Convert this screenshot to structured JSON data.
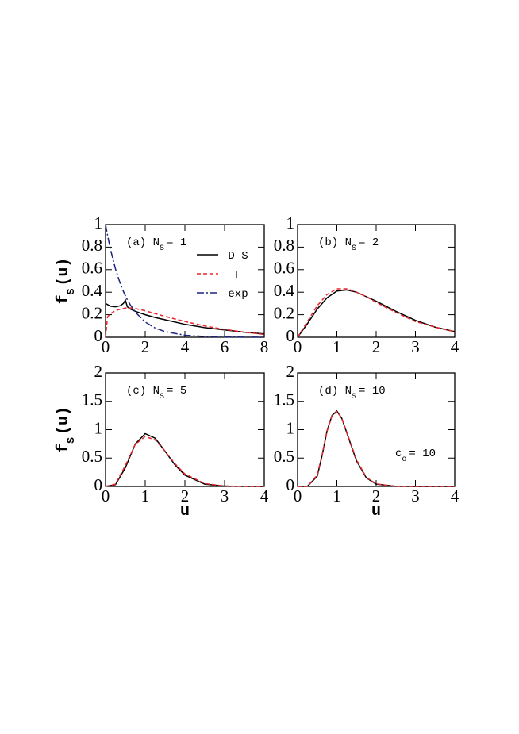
{
  "chart_data": [
    {
      "type": "line",
      "annotation": {
        "text": "(a) N",
        "sub": "S",
        "tail": "= 1"
      },
      "ylabel": {
        "text": "f",
        "sub": "S",
        "tail": "(u)"
      },
      "x": [
        0,
        0.1,
        0.25,
        0.5,
        0.75,
        0.9,
        1,
        1.1,
        1.25,
        1.5,
        2,
        2.5,
        3,
        4,
        5,
        6,
        7,
        8
      ],
      "series": [
        {
          "name": "D S",
          "color": "#000000",
          "dash": "solid",
          "values": [
            0.3,
            0.29,
            0.275,
            0.27,
            0.28,
            0.3,
            0.33,
            0.27,
            0.25,
            0.23,
            0.2,
            0.175,
            0.155,
            0.115,
            0.085,
            0.065,
            0.045,
            0.03
          ]
        },
        {
          "name": "Γ",
          "color": "#e8262b",
          "dash": "dashed",
          "values": [
            0,
            0.18,
            0.21,
            0.235,
            0.25,
            0.255,
            0.26,
            0.26,
            0.26,
            0.255,
            0.235,
            0.21,
            0.185,
            0.14,
            0.1,
            0.07,
            0.045,
            0.025
          ]
        },
        {
          "name": "exp",
          "color": "#1a237e",
          "dash": "dashdot",
          "values": [
            1,
            0.905,
            0.779,
            0.607,
            0.472,
            0.407,
            0.368,
            0.333,
            0.287,
            0.223,
            0.135,
            0.082,
            0.05,
            0.018,
            0.007,
            0.002,
            0.001,
            0.0003
          ]
        }
      ],
      "legend": "upper right",
      "xlim": [
        0,
        8
      ],
      "xticks": [
        0,
        2,
        4,
        6,
        8
      ],
      "ylim": [
        0,
        1
      ],
      "yticks": [
        0,
        0.2,
        0.4,
        0.6,
        0.8,
        1
      ]
    },
    {
      "type": "line",
      "annotation": {
        "text": "(b) N",
        "sub": "S",
        "tail": "= 2"
      },
      "x": [
        0,
        0.25,
        0.5,
        0.75,
        1,
        1.25,
        1.5,
        1.75,
        2,
        2.5,
        3,
        3.5,
        4
      ],
      "series": [
        {
          "color": "#000000",
          "dash": "solid",
          "values": [
            0,
            0.12,
            0.25,
            0.35,
            0.41,
            0.42,
            0.4,
            0.36,
            0.32,
            0.23,
            0.15,
            0.09,
            0.05
          ]
        },
        {
          "color": "#e8262b",
          "dash": "dashed",
          "values": [
            0,
            0.14,
            0.28,
            0.38,
            0.43,
            0.43,
            0.4,
            0.36,
            0.31,
            0.22,
            0.14,
            0.09,
            0.05
          ]
        }
      ],
      "xlim": [
        0,
        4
      ],
      "xticks": [
        0,
        1,
        2,
        3,
        4
      ],
      "ylim": [
        0,
        1
      ],
      "yticks": [
        0,
        0.2,
        0.4,
        0.6,
        0.8,
        1
      ]
    },
    {
      "type": "line",
      "annotation": {
        "text": "(c) N",
        "sub": "S",
        "tail": "= 5"
      },
      "ylabel": {
        "text": "f",
        "sub": "S",
        "tail": "(u)"
      },
      "xlabel": "u",
      "x": [
        0,
        0.25,
        0.5,
        0.75,
        1,
        1.25,
        1.5,
        1.75,
        2,
        2.5,
        3,
        3.5,
        4
      ],
      "series": [
        {
          "color": "#000000",
          "dash": "solid",
          "values": [
            0,
            0.03,
            0.33,
            0.75,
            0.93,
            0.85,
            0.62,
            0.38,
            0.2,
            0.04,
            0.005,
            0.001,
            0
          ]
        },
        {
          "color": "#e8262b",
          "dash": "dashed",
          "values": [
            0,
            0.04,
            0.37,
            0.74,
            0.88,
            0.82,
            0.62,
            0.4,
            0.22,
            0.05,
            0.008,
            0.001,
            0
          ]
        }
      ],
      "xlim": [
        0,
        4
      ],
      "xticks": [
        0,
        1,
        2,
        3,
        4
      ],
      "ylim": [
        0,
        2
      ],
      "yticks": [
        0,
        0.5,
        1,
        1.5,
        2
      ]
    },
    {
      "type": "line",
      "annotation": {
        "text": "(d) N",
        "sub": "S",
        "tail": "= 10"
      },
      "note": {
        "text": "c",
        "sub": "o",
        "tail": "= 10"
      },
      "xlabel": "u",
      "x": [
        0,
        0.25,
        0.5,
        0.625,
        0.75,
        0.875,
        1,
        1.125,
        1.25,
        1.5,
        1.75,
        2,
        2.5,
        3,
        4
      ],
      "series": [
        {
          "color": "#000000",
          "dash": "solid",
          "values": [
            0,
            0.001,
            0.18,
            0.55,
            0.98,
            1.25,
            1.33,
            1.2,
            0.95,
            0.45,
            0.15,
            0.04,
            0.002,
            0,
            0
          ]
        },
        {
          "color": "#e8262b",
          "dash": "dashed",
          "values": [
            0,
            0.002,
            0.2,
            0.56,
            0.97,
            1.24,
            1.32,
            1.2,
            0.96,
            0.47,
            0.16,
            0.045,
            0.002,
            0,
            0
          ]
        }
      ],
      "xlim": [
        0,
        4
      ],
      "xticks": [
        0,
        1,
        2,
        3,
        4
      ],
      "ylim": [
        0,
        2
      ],
      "yticks": [
        0,
        0.5,
        1,
        1.5,
        2
      ]
    }
  ]
}
